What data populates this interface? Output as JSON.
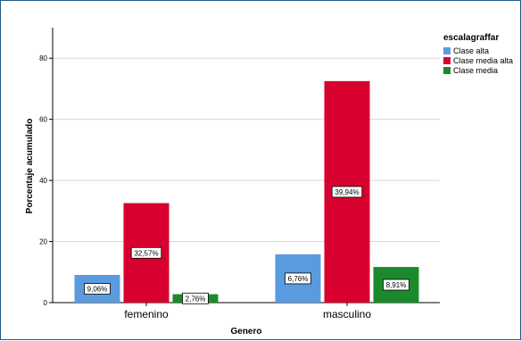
{
  "chart_data": {
    "type": "bar",
    "title": "",
    "xlabel": "Genero",
    "ylabel": "Porcentaje acumulado",
    "categories": [
      "femenino",
      "masculino"
    ],
    "ylim": [
      0,
      90
    ],
    "yticks": [
      "0",
      "20",
      "40",
      "60",
      "80"
    ],
    "ytick_values": [
      0,
      20,
      40,
      60,
      80
    ],
    "grid": true,
    "legend": {
      "title": "escalagraffar",
      "position": "top-right"
    },
    "series": [
      {
        "name": "Clase alta",
        "color": "#5a9be0",
        "values": [
          9.06,
          15.82
        ],
        "labels": [
          "9,06%",
          "6,76%"
        ]
      },
      {
        "name": "Clase media alta",
        "color": "#d8002e",
        "values": [
          32.57,
          72.51
        ],
        "labels": [
          "32,57%",
          "39,94%"
        ]
      },
      {
        "name": "Clase media",
        "color": "#1c8a2c",
        "values": [
          2.76,
          11.67
        ],
        "labels": [
          "2,76%",
          "8,91%"
        ]
      }
    ]
  }
}
